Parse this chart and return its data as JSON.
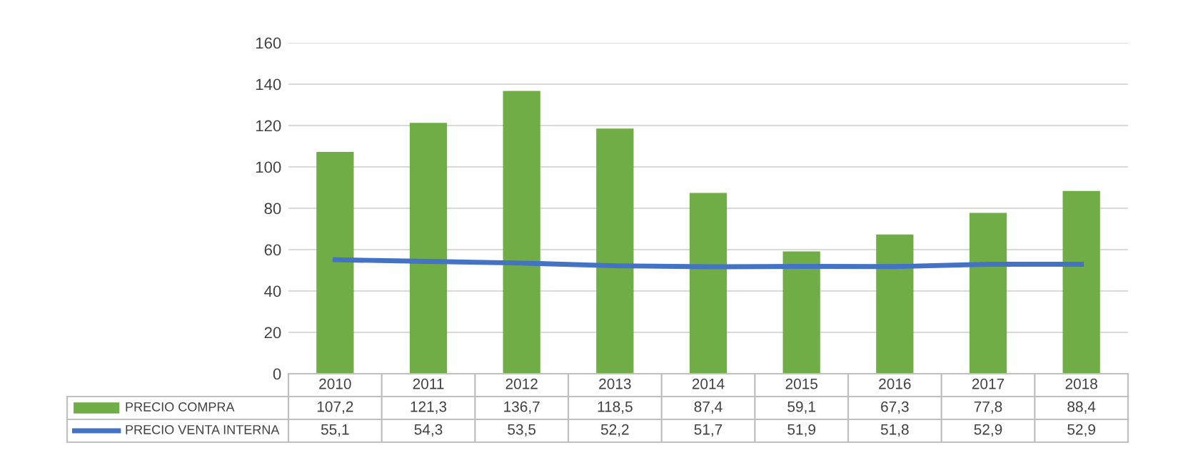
{
  "chart_data": {
    "type": "bar",
    "categories": [
      "2010",
      "2011",
      "2012",
      "2013",
      "2014",
      "2015",
      "2016",
      "2017",
      "2018"
    ],
    "series": [
      {
        "name": "PRECIO COMPRA",
        "color": "#70ad47",
        "values": [
          107.2,
          121.3,
          136.7,
          118.5,
          87.4,
          59.1,
          67.3,
          77.8,
          88.4
        ],
        "value_labels": [
          "107,2",
          "121,3",
          "136,7",
          "118,5",
          "87,4",
          "59,1",
          "67,3",
          "77,8",
          "88,4"
        ]
      },
      {
        "name": "PRECIO VENTA INTERNA",
        "type": "line",
        "color": "#4472c4",
        "values": [
          55.1,
          54.3,
          53.5,
          52.2,
          51.7,
          51.9,
          51.8,
          52.9,
          52.9
        ],
        "value_labels": [
          "55,1",
          "54,3",
          "53,5",
          "52,2",
          "51,7",
          "51,9",
          "51,8",
          "52,9",
          "52,9"
        ]
      }
    ],
    "ylim": [
      0,
      160
    ],
    "yticks": [
      0,
      20,
      40,
      60,
      80,
      100,
      120,
      140,
      160
    ],
    "grid": "y",
    "legend": "bottom left",
    "marker": "none",
    "line_style": "solid"
  }
}
